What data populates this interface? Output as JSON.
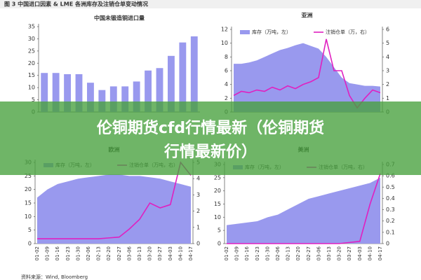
{
  "figure_title": "图 3  中国进口因素 & LME 各洲库存及注销仓单变动情况",
  "banner": [
    "伦铜期货cfd行情最新（伦铜期货",
    "行情最新价）"
  ],
  "source": "资料来源：Wind, Bloomberg",
  "chart_data": [
    {
      "type": "bar",
      "title": "中国未锻造铜进口量",
      "color": "#9999ee",
      "categories": [
        null,
        null,
        null,
        null,
        null,
        null,
        null,
        null,
        null,
        null,
        null,
        null,
        null,
        null
      ],
      "values": [
        16,
        16,
        15.5,
        15.5,
        12,
        9,
        10.5,
        10.5,
        12.5,
        17,
        18,
        23,
        28.5,
        31
      ],
      "ylim": [
        0,
        35
      ],
      "yticks": [
        0,
        5,
        10,
        15,
        20,
        25,
        30,
        35
      ]
    },
    {
      "type": "combo",
      "title": "亚洲",
      "categories": [
        null,
        null,
        null,
        null,
        null,
        null,
        null,
        null,
        null,
        null,
        null,
        null,
        null,
        null,
        null,
        null,
        null,
        null,
        null,
        null
      ],
      "series": [
        {
          "name": "库存（万吨，左）",
          "kind": "area",
          "color": "#9999ee",
          "values": [
            7,
            7,
            7.2,
            7.5,
            8,
            8.5,
            9,
            9.3,
            9.7,
            10,
            9.6,
            9.2,
            8,
            6.5,
            5,
            4.2,
            4,
            3.8,
            3.8,
            3.7
          ]
        },
        {
          "name": "注销仓单（万，右）",
          "kind": "line",
          "axis": "y2",
          "color": "#e020c0",
          "values": [
            1.2,
            1.5,
            1.4,
            1.6,
            1.5,
            1.8,
            1.6,
            1.9,
            1.7,
            2,
            2.2,
            2.5,
            5.3,
            3,
            3,
            1.2,
            0.3,
            1,
            1.6,
            1.4
          ]
        }
      ],
      "ylim": [
        0,
        12
      ],
      "yticks": [
        0,
        2,
        4,
        6,
        8,
        10,
        12
      ],
      "y2lim": [
        0,
        6
      ],
      "y2ticks": [
        0,
        1,
        2,
        3,
        4,
        5,
        6
      ]
    },
    {
      "type": "combo",
      "title": "欧洲",
      "categories": [
        "01-02",
        "01-09",
        "01-16",
        "01-23",
        "01-30",
        "02-06",
        "02-13",
        "02-20",
        "02-27",
        "03-06",
        "03-13",
        "03-20",
        "03-27",
        "04-03",
        "04-10",
        "04-17"
      ],
      "series": [
        {
          "name": "库存（万吨，左）",
          "kind": "area",
          "color": "#9999ee",
          "values": [
            17,
            20,
            22,
            23,
            24,
            24.5,
            25,
            25.5,
            25.5,
            25,
            25,
            24.5,
            24,
            23,
            22,
            21
          ]
        },
        {
          "name": "注销仓单（万吨，右）",
          "kind": "line",
          "axis": "y2",
          "color": "#e020c0",
          "values": [
            0.3,
            0.3,
            0.3,
            0.3,
            0.3,
            0.3,
            0.3,
            0.35,
            0.4,
            0.9,
            1.5,
            2.5,
            2.2,
            2.4,
            5,
            4.2
          ]
        }
      ],
      "ylim": [
        0,
        30
      ],
      "yticks": [
        0,
        5,
        10,
        15,
        20,
        25,
        30
      ],
      "y2lim": [
        0,
        5
      ],
      "y2ticks": [
        0,
        1,
        2,
        3,
        4,
        5
      ]
    },
    {
      "type": "combo",
      "title": "美洲",
      "categories": [
        "01-02",
        "01-09",
        "01-16",
        "01-23",
        "01-30",
        "02-06",
        "02-13",
        "02-20",
        "02-27",
        "03-06",
        "03-13",
        "03-20",
        "03-27",
        "04-03",
        "04-10",
        "04-17"
      ],
      "series": [
        {
          "name": "库存（万吨，左）",
          "kind": "area",
          "color": "#9999ee",
          "values": [
            7,
            7.5,
            8,
            8.5,
            10,
            11,
            13,
            15,
            17,
            18,
            19,
            20,
            21,
            22,
            23,
            25
          ]
        },
        {
          "name": "注销仓单（万吨，右）",
          "kind": "line",
          "axis": "y2",
          "color": "#e020c0",
          "values": [
            0,
            0,
            0,
            0,
            0,
            0,
            0,
            0,
            0,
            0,
            0,
            0,
            0.01,
            0.02,
            0.35,
            0.62
          ]
        }
      ],
      "ylim": [
        0,
        30
      ],
      "yticks": [
        0,
        5,
        10,
        15,
        20,
        25,
        30
      ],
      "y2lim": [
        0,
        0.7
      ],
      "y2ticks": [
        0,
        0.1,
        0.2,
        0.3,
        0.4,
        0.5,
        0.6,
        0.7
      ]
    }
  ]
}
